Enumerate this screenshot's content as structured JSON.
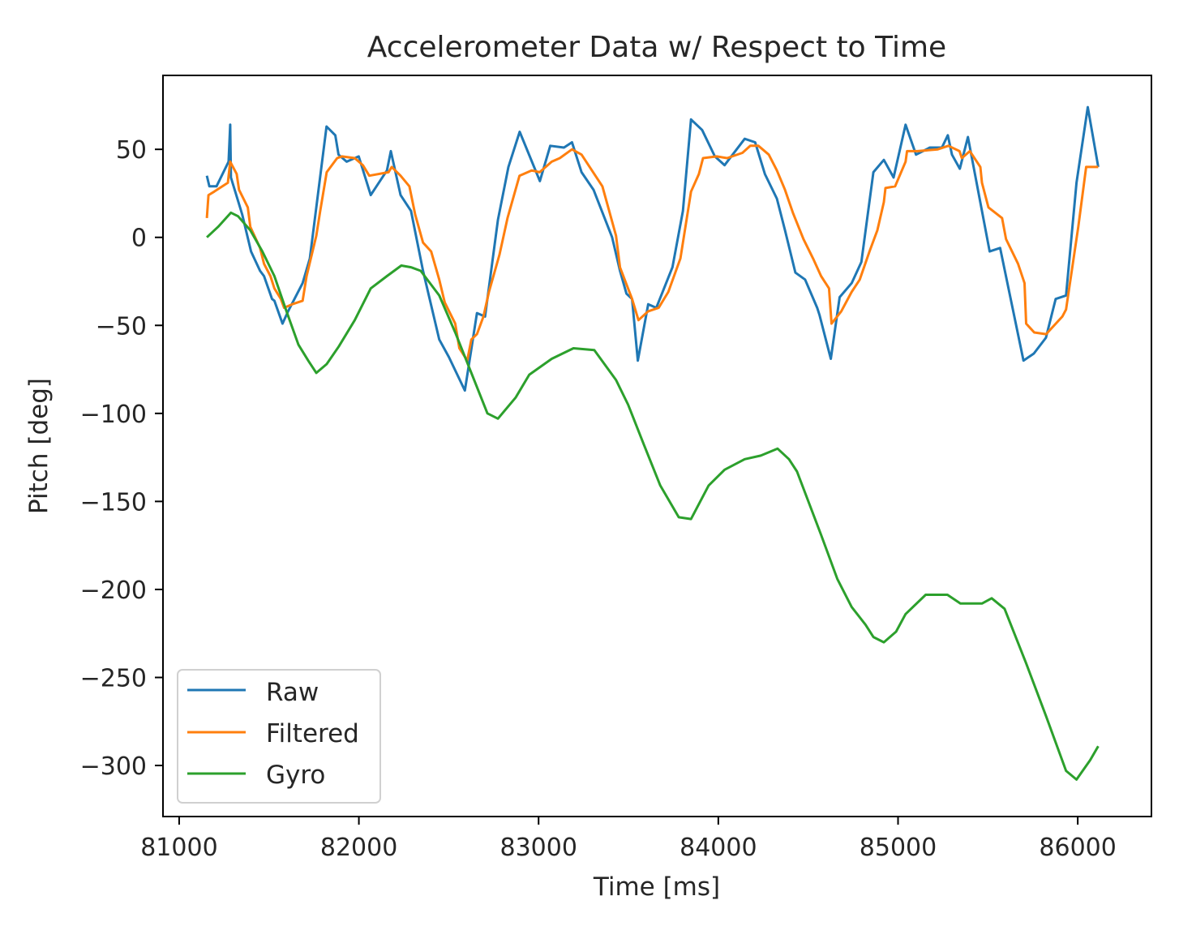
{
  "chart_data": {
    "type": "line",
    "title": "Accelerometer Data w/ Respect to Time",
    "xlabel": "Time [ms]",
    "ylabel": "Pitch [deg]",
    "xlim": [
      80910,
      86410
    ],
    "ylim": [
      -329,
      92
    ],
    "xticks": [
      81000,
      82000,
      83000,
      84000,
      85000,
      86000
    ],
    "yticks": [
      50,
      0,
      -50,
      -100,
      -150,
      -200,
      -250,
      -300
    ],
    "grid": false,
    "legend_position": "lower left",
    "series": [
      {
        "name": "Raw",
        "color": "#1f77b4",
        "points": [
          [
            81154,
            35
          ],
          [
            81168,
            29
          ],
          [
            81208,
            29
          ],
          [
            81275,
            43
          ],
          [
            81284,
            64
          ],
          [
            81288,
            34
          ],
          [
            81351,
            13
          ],
          [
            81400,
            -8
          ],
          [
            81450,
            -19
          ],
          [
            81472,
            -22
          ],
          [
            81517,
            -35
          ],
          [
            81530,
            -36
          ],
          [
            81575,
            -49
          ],
          [
            81606,
            -42
          ],
          [
            81687,
            -26
          ],
          [
            81727,
            -12
          ],
          [
            81820,
            63
          ],
          [
            81869,
            58
          ],
          [
            81887,
            47
          ],
          [
            81932,
            43
          ],
          [
            81999,
            46
          ],
          [
            82066,
            24
          ],
          [
            82156,
            38
          ],
          [
            82178,
            49
          ],
          [
            82232,
            24
          ],
          [
            82290,
            15
          ],
          [
            82357,
            -19
          ],
          [
            82447,
            -58
          ],
          [
            82501,
            -68
          ],
          [
            82590,
            -87
          ],
          [
            82657,
            -43
          ],
          [
            82702,
            -45
          ],
          [
            82774,
            10
          ],
          [
            82832,
            40
          ],
          [
            82895,
            60
          ],
          [
            83007,
            32
          ],
          [
            83065,
            52
          ],
          [
            83141,
            51
          ],
          [
            83186,
            54
          ],
          [
            83239,
            37
          ],
          [
            83306,
            27
          ],
          [
            83409,
            0
          ],
          [
            83453,
            -19
          ],
          [
            83489,
            -32
          ],
          [
            83520,
            -35
          ],
          [
            83552,
            -70
          ],
          [
            83610,
            -38
          ],
          [
            83655,
            -40
          ],
          [
            83745,
            -17
          ],
          [
            83803,
            15
          ],
          [
            83848,
            67
          ],
          [
            83910,
            61
          ],
          [
            83981,
            46
          ],
          [
            84035,
            41
          ],
          [
            84147,
            56
          ],
          [
            84205,
            54
          ],
          [
            84259,
            36
          ],
          [
            84326,
            22
          ],
          [
            84371,
            4
          ],
          [
            84429,
            -20
          ],
          [
            84483,
            -24
          ],
          [
            84550,
            -40
          ],
          [
            84563,
            -44
          ],
          [
            84626,
            -69
          ],
          [
            84675,
            -34
          ],
          [
            84742,
            -26
          ],
          [
            84796,
            -14
          ],
          [
            84863,
            37
          ],
          [
            84921,
            44
          ],
          [
            84975,
            34
          ],
          [
            85042,
            64
          ],
          [
            85100,
            47
          ],
          [
            85177,
            51
          ],
          [
            85244,
            51
          ],
          [
            85277,
            58
          ],
          [
            85300,
            47
          ],
          [
            85344,
            39
          ],
          [
            85389,
            57
          ],
          [
            85452,
            23
          ],
          [
            85510,
            -8
          ],
          [
            85568,
            -6
          ],
          [
            85698,
            -70
          ],
          [
            85756,
            -66
          ],
          [
            85823,
            -57
          ],
          [
            85877,
            -35
          ],
          [
            85935,
            -33
          ],
          [
            85993,
            31
          ],
          [
            86056,
            74
          ],
          [
            86114,
            40
          ]
        ]
      },
      {
        "name": "Filtered",
        "color": "#ff7f0e",
        "points": [
          [
            81154,
            11
          ],
          [
            81163,
            24
          ],
          [
            81195,
            26
          ],
          [
            81271,
            31
          ],
          [
            81284,
            43
          ],
          [
            81320,
            36
          ],
          [
            81333,
            27
          ],
          [
            81382,
            17
          ],
          [
            81396,
            6
          ],
          [
            81450,
            -6
          ],
          [
            81472,
            -15
          ],
          [
            81508,
            -22
          ],
          [
            81530,
            -29
          ],
          [
            81566,
            -35
          ],
          [
            81584,
            -40
          ],
          [
            81629,
            -38
          ],
          [
            81687,
            -36
          ],
          [
            81709,
            -22
          ],
          [
            81763,
            1
          ],
          [
            81785,
            15
          ],
          [
            81821,
            37
          ],
          [
            81879,
            45
          ],
          [
            81906,
            46
          ],
          [
            81977,
            45
          ],
          [
            82022,
            41
          ],
          [
            82058,
            35
          ],
          [
            82165,
            37
          ],
          [
            82183,
            40
          ],
          [
            82232,
            35
          ],
          [
            82281,
            29
          ],
          [
            82313,
            13
          ],
          [
            82357,
            -3
          ],
          [
            82402,
            -8
          ],
          [
            82447,
            -24
          ],
          [
            82478,
            -37
          ],
          [
            82536,
            -49
          ],
          [
            82559,
            -63
          ],
          [
            82603,
            -70
          ],
          [
            82626,
            -58
          ],
          [
            82657,
            -55
          ],
          [
            82693,
            -45
          ],
          [
            82724,
            -31
          ],
          [
            82782,
            -10
          ],
          [
            82827,
            11
          ],
          [
            82894,
            35
          ],
          [
            82961,
            38
          ],
          [
            83006,
            37
          ],
          [
            83073,
            43
          ],
          [
            83118,
            45
          ],
          [
            83186,
            50
          ],
          [
            83239,
            47
          ],
          [
            83297,
            38
          ],
          [
            83355,
            29
          ],
          [
            83431,
            1
          ],
          [
            83453,
            -17
          ],
          [
            83520,
            -35
          ],
          [
            83556,
            -47
          ],
          [
            83610,
            -42
          ],
          [
            83668,
            -40
          ],
          [
            83722,
            -31
          ],
          [
            83789,
            -12
          ],
          [
            83848,
            26
          ],
          [
            83892,
            36
          ],
          [
            83915,
            45
          ],
          [
            83991,
            46
          ],
          [
            84049,
            45
          ],
          [
            84134,
            48
          ],
          [
            84178,
            52
          ],
          [
            84223,
            52
          ],
          [
            84281,
            47
          ],
          [
            84326,
            38
          ],
          [
            84371,
            27
          ],
          [
            84415,
            14
          ],
          [
            84474,
            -1
          ],
          [
            84527,
            -12
          ],
          [
            84572,
            -22
          ],
          [
            84616,
            -29
          ],
          [
            84630,
            -49
          ],
          [
            84684,
            -42
          ],
          [
            84742,
            -31
          ],
          [
            84787,
            -24
          ],
          [
            84841,
            -8
          ],
          [
            84885,
            4
          ],
          [
            84921,
            20
          ],
          [
            84930,
            28
          ],
          [
            84984,
            29
          ],
          [
            85042,
            43
          ],
          [
            85050,
            49
          ],
          [
            85109,
            49
          ],
          [
            85221,
            50
          ],
          [
            85280,
            52
          ],
          [
            85342,
            49
          ],
          [
            85355,
            45
          ],
          [
            85400,
            49
          ],
          [
            85458,
            40
          ],
          [
            85467,
            31
          ],
          [
            85503,
            17
          ],
          [
            85579,
            11
          ],
          [
            85601,
            -1
          ],
          [
            85668,
            -15
          ],
          [
            85704,
            -26
          ],
          [
            85713,
            -49
          ],
          [
            85758,
            -54
          ],
          [
            85824,
            -55
          ],
          [
            85914,
            -45
          ],
          [
            85935,
            -41
          ],
          [
            86003,
            6
          ],
          [
            86047,
            40
          ],
          [
            86114,
            40
          ]
        ]
      },
      {
        "name": "Gyro",
        "color": "#2ca02c",
        "points": [
          [
            81154,
            0
          ],
          [
            81217,
            6
          ],
          [
            81288,
            14
          ],
          [
            81328,
            12
          ],
          [
            81396,
            4
          ],
          [
            81463,
            -8
          ],
          [
            81530,
            -22
          ],
          [
            81597,
            -42
          ],
          [
            81664,
            -61
          ],
          [
            81718,
            -70
          ],
          [
            81763,
            -77
          ],
          [
            81821,
            -72
          ],
          [
            81888,
            -62
          ],
          [
            81977,
            -47
          ],
          [
            82066,
            -29
          ],
          [
            82156,
            -22
          ],
          [
            82236,
            -16
          ],
          [
            82290,
            -17
          ],
          [
            82344,
            -19
          ],
          [
            82447,
            -33
          ],
          [
            82536,
            -54
          ],
          [
            82626,
            -77
          ],
          [
            82715,
            -100
          ],
          [
            82774,
            -103
          ],
          [
            82872,
            -91
          ],
          [
            82948,
            -78
          ],
          [
            83073,
            -69
          ],
          [
            83194,
            -63
          ],
          [
            83310,
            -64
          ],
          [
            83431,
            -81
          ],
          [
            83498,
            -95
          ],
          [
            83587,
            -118
          ],
          [
            83677,
            -141
          ],
          [
            83780,
            -159
          ],
          [
            83848,
            -160
          ],
          [
            83946,
            -141
          ],
          [
            84035,
            -132
          ],
          [
            84147,
            -126
          ],
          [
            84236,
            -124
          ],
          [
            84330,
            -120
          ],
          [
            84393,
            -126
          ],
          [
            84438,
            -133
          ],
          [
            84572,
            -169
          ],
          [
            84662,
            -194
          ],
          [
            84742,
            -210
          ],
          [
            84819,
            -220
          ],
          [
            84863,
            -227
          ],
          [
            84921,
            -230
          ],
          [
            84989,
            -224
          ],
          [
            85042,
            -214
          ],
          [
            85154,
            -203
          ],
          [
            85275,
            -203
          ],
          [
            85347,
            -208
          ],
          [
            85467,
            -208
          ],
          [
            85521,
            -205
          ],
          [
            85593,
            -211
          ],
          [
            85713,
            -242
          ],
          [
            85824,
            -272
          ],
          [
            85935,
            -303
          ],
          [
            85993,
            -308
          ],
          [
            86069,
            -297
          ],
          [
            86114,
            -289
          ]
        ]
      }
    ]
  },
  "labels": {
    "title": "Accelerometer Data w/ Respect to Time",
    "xlabel": "Time [ms]",
    "ylabel": "Pitch [deg]",
    "xticks": [
      "81000",
      "82000",
      "83000",
      "84000",
      "85000",
      "86000"
    ],
    "yticks": [
      "50",
      "0",
      "−50",
      "−100",
      "−150",
      "−200",
      "−250",
      "−300"
    ],
    "legend": [
      "Raw",
      "Filtered",
      "Gyro"
    ]
  }
}
